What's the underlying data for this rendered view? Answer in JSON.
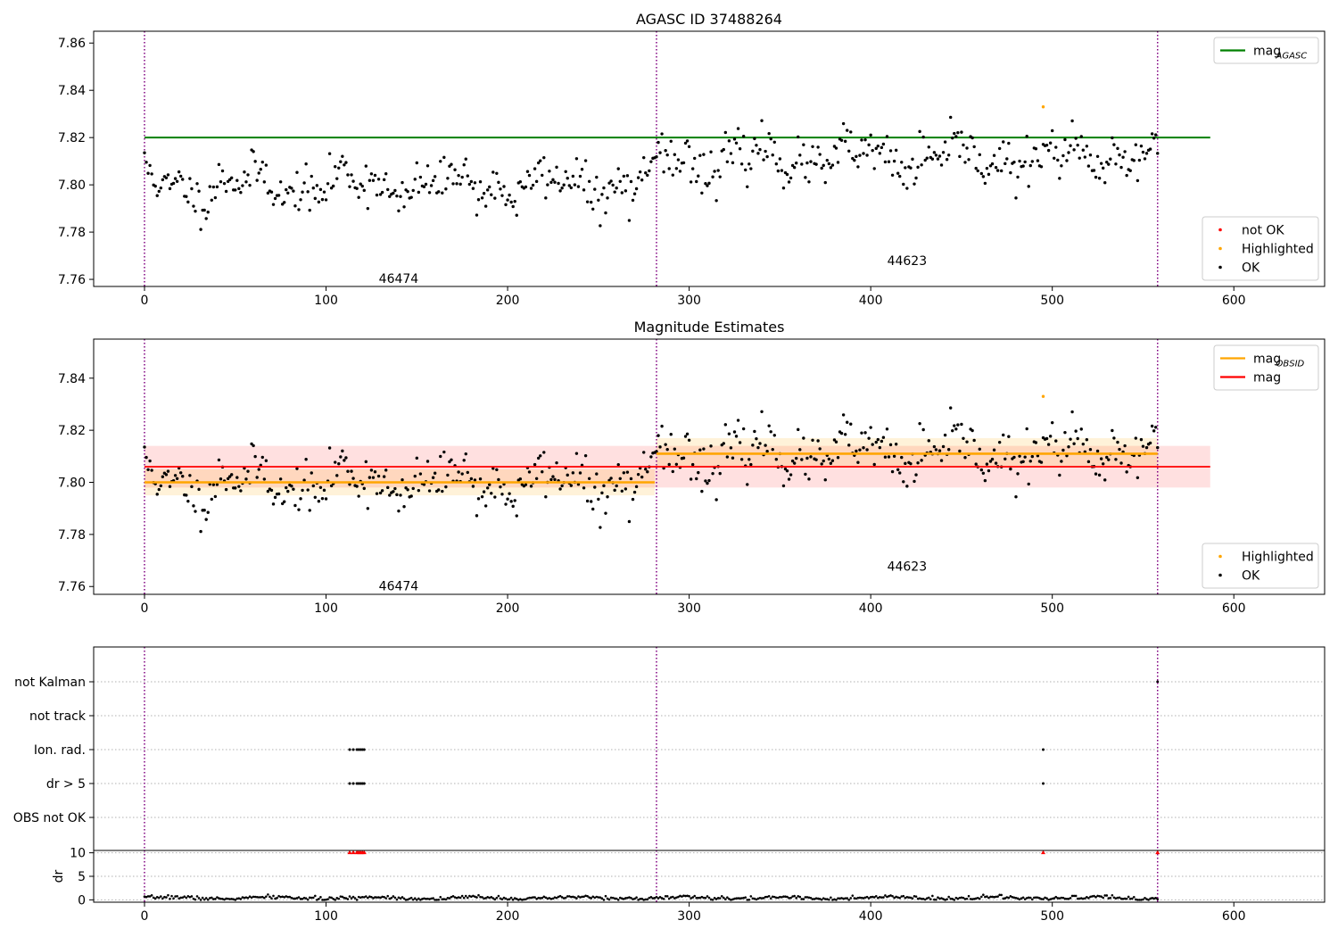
{
  "chart_data": [
    {
      "type": "scatter",
      "title": "AGASC ID 37488264",
      "xlabel": "",
      "ylabel": "",
      "xlim": [
        -28,
        650
      ],
      "ylim": [
        7.757,
        7.865
      ],
      "xticks": [
        0,
        100,
        200,
        300,
        400,
        500,
        600
      ],
      "yticks": [
        7.76,
        7.78,
        7.8,
        7.82,
        7.84,
        7.86
      ],
      "x_total": 559,
      "obsid_boundaries": [
        0,
        282,
        558
      ],
      "obsid_labels": [
        {
          "text": "46474",
          "x": 140,
          "y": 7.7585
        },
        {
          "text": "44623",
          "x": 420,
          "y": 7.766
        }
      ],
      "segments": [
        {
          "x_start": 0,
          "x_end": 281,
          "mean": 7.8,
          "amplitude": 0.0065,
          "noise": 0.0045,
          "seed": 11
        },
        {
          "x_start": 282,
          "x_end": 558,
          "mean": 7.811,
          "amplitude": 0.0055,
          "noise": 0.0048,
          "seed": 23
        }
      ],
      "highlighted_points": [
        {
          "x": 495,
          "y": 7.833
        }
      ],
      "lines": [
        {
          "name": "mag",
          "sub": "AGASC",
          "y": 7.82,
          "x_start": 0,
          "x_end": 587,
          "color": "#008000"
        }
      ],
      "legend_top": {
        "placement": "top-right",
        "entries": [
          {
            "label": "mag",
            "sub": "AGASC",
            "color": "#008000",
            "kind": "line"
          }
        ]
      },
      "legend_bottom": {
        "placement": "bottom-right",
        "entries": [
          {
            "label": "not OK",
            "color": "#ff0000",
            "kind": "point"
          },
          {
            "label": "Highlighted",
            "color": "#ffa500",
            "kind": "point"
          },
          {
            "label": "OK",
            "color": "#000000",
            "kind": "point"
          }
        ]
      }
    },
    {
      "type": "scatter",
      "title": "Magnitude Estimates",
      "xlabel": "",
      "ylabel": "",
      "xlim": [
        -28,
        650
      ],
      "ylim": [
        7.757,
        7.855
      ],
      "xticks": [
        0,
        100,
        200,
        300,
        400,
        500,
        600
      ],
      "yticks": [
        7.76,
        7.78,
        7.8,
        7.82,
        7.84
      ],
      "obsid_boundaries": [
        0,
        282,
        558
      ],
      "obsid_labels": [
        {
          "text": "46474",
          "x": 140,
          "y": 7.7585
        },
        {
          "text": "44623",
          "x": 420,
          "y": 7.766
        }
      ],
      "mag_overall": {
        "y": 7.806,
        "band": [
          7.798,
          7.814
        ],
        "x_start": 0,
        "x_end": 587,
        "color": "#ff0000"
      },
      "mag_obsid": [
        {
          "x_start": 0,
          "x_end": 281,
          "y": 7.8,
          "band": [
            7.795,
            7.805
          ]
        },
        {
          "x_start": 282,
          "x_end": 558,
          "y": 7.811,
          "band": [
            7.806,
            7.817
          ]
        }
      ],
      "highlighted_points": [
        {
          "x": 495,
          "y": 7.833
        }
      ],
      "legend_top": {
        "placement": "top-right",
        "entries": [
          {
            "label": "mag",
            "sub": "OBSID",
            "color": "#ffa500",
            "kind": "line"
          },
          {
            "label": "mag",
            "sub": "",
            "color": "#ff0000",
            "kind": "line"
          }
        ]
      },
      "legend_bottom": {
        "placement": "bottom-right",
        "entries": [
          {
            "label": "Highlighted",
            "color": "#ffa500",
            "kind": "point"
          },
          {
            "label": "OK",
            "color": "#000000",
            "kind": "point"
          }
        ]
      }
    },
    {
      "type": "scatter",
      "title": "",
      "categories": [
        "not Kalman",
        "not track",
        "Ion. rad.",
        "dr > 5",
        "OBS not OK"
      ],
      "xlim": [
        -28,
        650
      ],
      "obsid_boundaries": [
        0,
        282,
        558
      ],
      "flag_points": {
        "not Kalman": [
          558
        ],
        "not track": [],
        "Ion. rad.": [
          113,
          115,
          117,
          118,
          119,
          120,
          121,
          495
        ],
        "dr > 5": [
          113,
          115,
          117,
          118,
          119,
          120,
          121,
          495
        ],
        "OBS not OK": []
      }
    },
    {
      "type": "scatter",
      "title": "",
      "ylabel": "dr",
      "xlim": [
        -28,
        650
      ],
      "ylim": [
        -0.5,
        10.5
      ],
      "xticks": [
        0,
        100,
        200,
        300,
        400,
        500,
        600
      ],
      "yticks": [
        0,
        5,
        10
      ],
      "obsid_boundaries": [
        0,
        282,
        558
      ],
      "clipped_points": [
        113,
        115,
        117,
        118,
        119,
        120,
        121,
        495,
        558
      ],
      "clip_value": 10,
      "baseline_mean": 0.4,
      "baseline_amplitude": 0.35
    }
  ]
}
